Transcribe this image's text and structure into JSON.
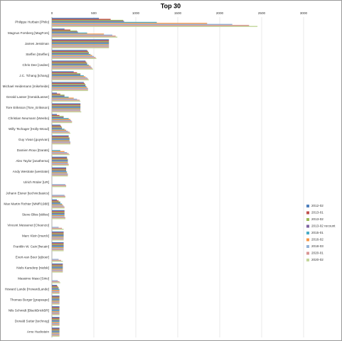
{
  "chart_data": {
    "type": "bar",
    "orientation": "horizontal",
    "title": "Top 30",
    "categories": [
      "Philippe Hurbain [Philo]",
      "Magnus Forsberg [MagFors]",
      "James Jessiman",
      "Steffen [Steffen]",
      "Chris Dee [cwdee]",
      "J.C. Tchang [tchang]",
      "Michael Heidemann [mikeheide]",
      "Gerald Lasser [GeraldLasser]",
      "Tore Eriksson [Tore_Eriksson]",
      "Christian Neumann [Weebo]",
      "Willy Tschager [Holly-Wood]",
      "Guy Vivan [guyvivan]",
      "Damien Roux [Darats]",
      "Alex Taylor [anathema]",
      "Andy Westrate [westrate]",
      "Ulrich Röder [UR]",
      "Johann Eisner [technicbasics]",
      "Max Martin Richter [MMR1988]",
      "Steve Bliss [sbliss]",
      "Vincent Messenet [Cheenzo]",
      "Marc Klein [marck]",
      "Franklin W. Cain [fwcain]",
      "Evert-van Boer [ejboer]",
      "Niels Karsdorp [nielsk]",
      "Massimo Maso [Sirio]",
      "Howard Lande [HowardLande]",
      "Thomas Burger [grapeape]",
      "Nils Schmidt [BlackBrickBR]",
      "Donald Sutter [technog]",
      "Arne Hackstein"
    ],
    "series": [
      {
        "name": "2012-02",
        "color": "#4F81BD",
        "values": [
          560,
          150,
          680,
          420,
          400,
          260,
          380,
          60,
          340,
          60,
          100,
          200,
          0,
          180,
          170,
          0,
          0,
          60,
          150,
          0,
          140,
          140,
          0,
          130,
          0,
          60,
          90,
          90,
          90,
          90
        ]
      },
      {
        "name": "2013-01",
        "color": "#C0504D",
        "values": [
          700,
          220,
          680,
          430,
          410,
          300,
          390,
          100,
          340,
          90,
          110,
          200,
          0,
          180,
          170,
          0,
          0,
          80,
          150,
          0,
          140,
          140,
          0,
          130,
          0,
          70,
          90,
          90,
          90,
          90
        ]
      },
      {
        "name": "2013-02",
        "color": "#9BBB59",
        "values": [
          850,
          300,
          680,
          440,
          420,
          340,
          400,
          150,
          340,
          140,
          120,
          210,
          0,
          190,
          170,
          0,
          0,
          100,
          150,
          0,
          140,
          140,
          0,
          130,
          0,
          80,
          90,
          90,
          90,
          90
        ]
      },
      {
        "name": "2013-02 recount",
        "color": "#8064A2",
        "values": [
          860,
          310,
          680,
          440,
          420,
          340,
          400,
          150,
          340,
          140,
          120,
          210,
          0,
          190,
          170,
          0,
          0,
          100,
          150,
          0,
          140,
          140,
          0,
          130,
          0,
          80,
          90,
          90,
          90,
          90
        ]
      },
      {
        "name": "2015-01",
        "color": "#4BACC6",
        "values": [
          1250,
          420,
          680,
          460,
          440,
          380,
          410,
          200,
          340,
          200,
          150,
          210,
          100,
          190,
          180,
          0,
          0,
          120,
          150,
          0,
          140,
          140,
          0,
          130,
          0,
          90,
          90,
          90,
          90,
          90
        ]
      },
      {
        "name": "2016-02",
        "color": "#F79646",
        "values": [
          1850,
          620,
          680,
          480,
          460,
          400,
          420,
          260,
          340,
          220,
          170,
          210,
          150,
          190,
          180,
          0,
          0,
          130,
          150,
          0,
          140,
          140,
          0,
          130,
          0,
          90,
          90,
          90,
          90,
          90
        ]
      },
      {
        "name": "2018-03",
        "color": "#95B3D7",
        "values": [
          2150,
          720,
          680,
          500,
          470,
          420,
          430,
          300,
          340,
          230,
          190,
          220,
          180,
          190,
          190,
          160,
          150,
          140,
          150,
          80,
          140,
          140,
          80,
          130,
          70,
          90,
          90,
          90,
          90,
          90
        ]
      },
      {
        "name": "2020-01",
        "color": "#D99694",
        "values": [
          2350,
          760,
          680,
          520,
          480,
          430,
          430,
          330,
          340,
          240,
          210,
          220,
          200,
          200,
          190,
          170,
          160,
          150,
          160,
          120,
          140,
          140,
          110,
          130,
          90,
          90,
          90,
          90,
          90,
          90
        ]
      },
      {
        "name": "2020-02",
        "color": "#C3D69B",
        "values": [
          2450,
          780,
          680,
          530,
          490,
          440,
          430,
          340,
          350,
          240,
          220,
          220,
          210,
          200,
          190,
          170,
          160,
          150,
          160,
          140,
          140,
          140,
          130,
          130,
          100,
          90,
          90,
          90,
          90,
          90
        ]
      }
    ],
    "xlim": [
      0,
      3000
    ],
    "xticks": [
      0,
      500,
      1000,
      1500,
      2000,
      2500,
      3000
    ],
    "grid": true,
    "legend": "right"
  }
}
